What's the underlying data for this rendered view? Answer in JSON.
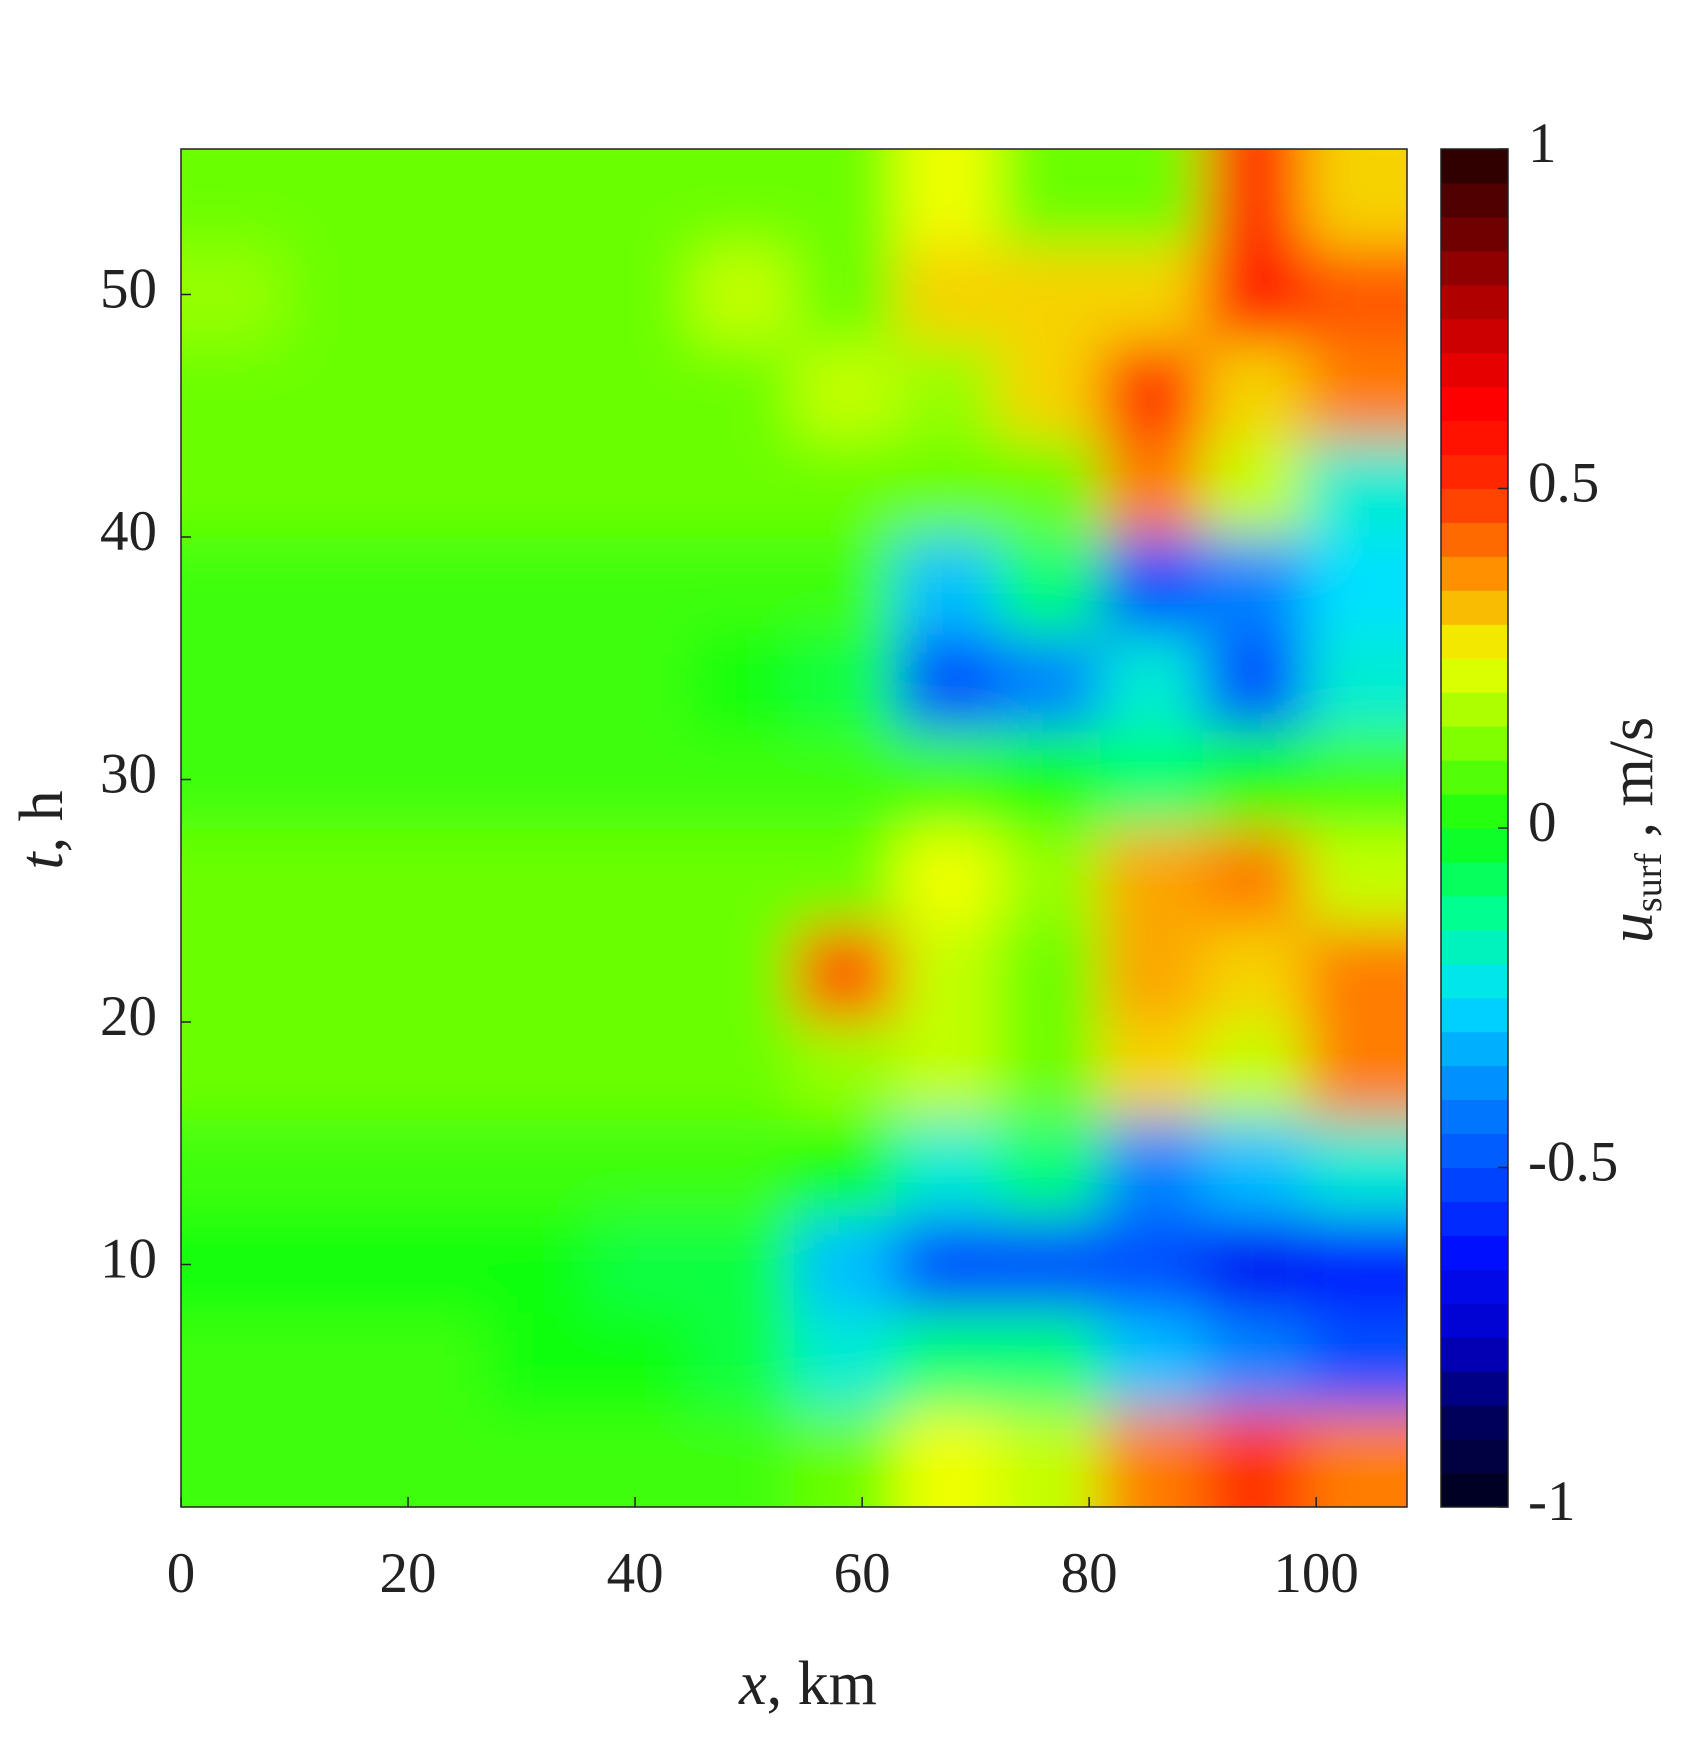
{
  "chart_data": {
    "type": "heatmap",
    "xlabel": {
      "symbol": "x",
      "text": ", km"
    },
    "ylabel": {
      "symbol": "t",
      "text": ", h"
    },
    "colorbar_label": {
      "symbol": "u",
      "subscript": "surf",
      "text": " , m/s"
    },
    "xlim": [
      0,
      108
    ],
    "xticks": [
      0,
      20,
      40,
      60,
      80,
      100
    ],
    "ylim": [
      0,
      56
    ],
    "yticks": [
      10,
      20,
      30,
      40,
      50
    ],
    "clim": [
      -1,
      1
    ],
    "cticks": [
      -1,
      -0.5,
      0,
      0.5,
      1
    ],
    "colormap": [
      "#000018",
      "#00005a",
      "#0000c8",
      "#0010ff",
      "#0050ff",
      "#0090ff",
      "#00e0ff",
      "#00ff90",
      "#10ff10",
      "#80ff00",
      "#f0ff00",
      "#ff9000",
      "#ff3000",
      "#ff0000",
      "#c00000",
      "#700000",
      "#200000"
    ],
    "x_bins": [
      0,
      9,
      18,
      27,
      36,
      45,
      54,
      63,
      72,
      81,
      90,
      99,
      108
    ],
    "t_bins": [
      0,
      4,
      8,
      12,
      16,
      20,
      24,
      28,
      32,
      36,
      40,
      44,
      48,
      52,
      56
    ],
    "z": [
      [
        0.05,
        0.05,
        0.05,
        0.05,
        0.05,
        0.05,
        0.1,
        0.25,
        0.2,
        0.4,
        0.5,
        0.4
      ],
      [
        0.05,
        0.05,
        0.05,
        0.0,
        0.0,
        -0.05,
        -0.2,
        -0.1,
        -0.1,
        -0.3,
        -0.4,
        -0.5
      ],
      [
        0.0,
        0.0,
        0.0,
        0.0,
        -0.05,
        -0.05,
        -0.3,
        -0.5,
        -0.5,
        -0.5,
        -0.65,
        -0.6
      ],
      [
        0.05,
        0.05,
        0.05,
        0.05,
        0.05,
        0.05,
        0.0,
        -0.2,
        -0.1,
        -0.4,
        -0.3,
        -0.2
      ],
      [
        0.1,
        0.1,
        0.1,
        0.1,
        0.1,
        0.1,
        0.15,
        0.2,
        0.1,
        0.3,
        0.2,
        0.4
      ],
      [
        0.1,
        0.1,
        0.1,
        0.1,
        0.1,
        0.1,
        0.45,
        0.2,
        0.1,
        0.35,
        0.3,
        0.4
      ],
      [
        0.1,
        0.1,
        0.1,
        0.1,
        0.1,
        0.1,
        0.1,
        0.25,
        0.15,
        0.35,
        0.4,
        0.2
      ],
      [
        0.05,
        0.05,
        0.05,
        0.05,
        0.05,
        0.05,
        0.05,
        0.05,
        0.0,
        -0.1,
        0.0,
        0.05
      ],
      [
        0.05,
        0.05,
        0.05,
        0.05,
        0.05,
        0.0,
        -0.05,
        -0.5,
        -0.4,
        -0.2,
        -0.5,
        -0.2
      ],
      [
        0.05,
        0.05,
        0.05,
        0.05,
        0.05,
        0.05,
        0.05,
        -0.3,
        -0.1,
        -0.5,
        -0.4,
        -0.25
      ],
      [
        0.1,
        0.1,
        0.1,
        0.1,
        0.1,
        0.1,
        0.1,
        0.1,
        0.1,
        0.4,
        0.2,
        -0.2
      ],
      [
        0.1,
        0.1,
        0.1,
        0.1,
        0.1,
        0.1,
        0.2,
        0.15,
        0.3,
        0.5,
        0.3,
        0.4
      ],
      [
        0.15,
        0.1,
        0.1,
        0.1,
        0.1,
        0.2,
        0.1,
        0.3,
        0.3,
        0.3,
        0.55,
        0.45
      ],
      [
        0.1,
        0.1,
        0.1,
        0.1,
        0.1,
        0.1,
        0.1,
        0.25,
        0.1,
        0.1,
        0.5,
        0.3
      ]
    ]
  }
}
